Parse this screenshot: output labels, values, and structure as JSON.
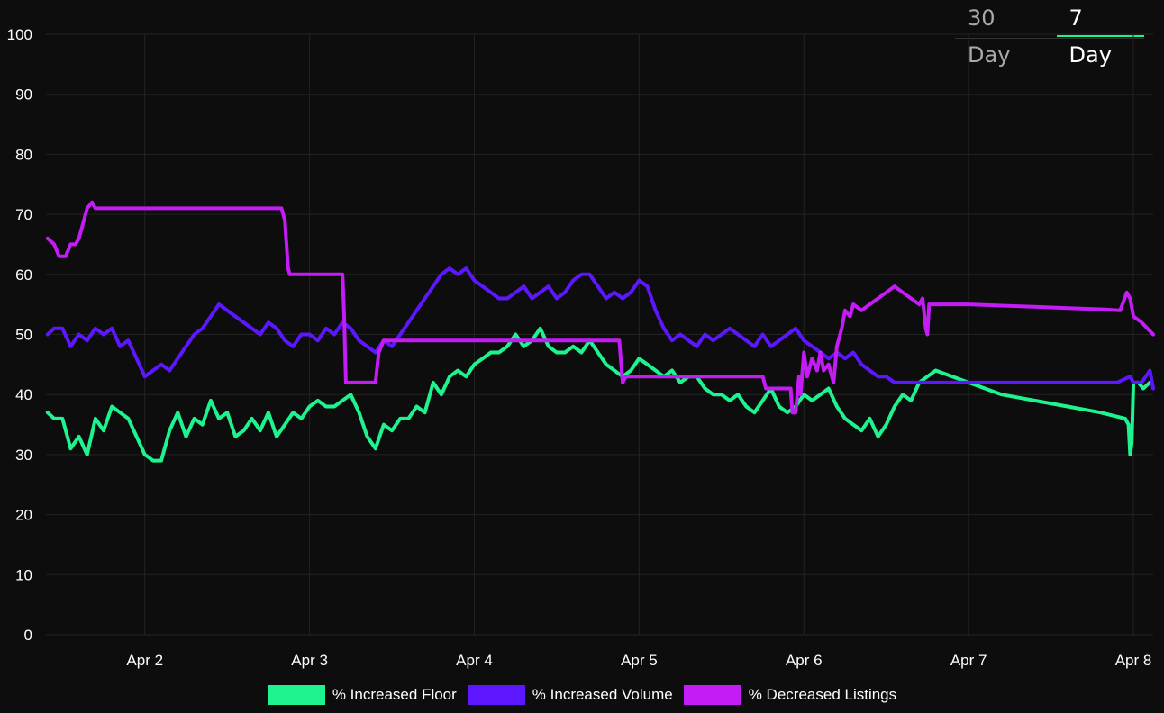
{
  "tabs": [
    {
      "label": "30 Day",
      "active": false
    },
    {
      "label": "7 Day",
      "active": true
    }
  ],
  "chart_data": {
    "type": "line",
    "title": "",
    "xlabel": "",
    "ylabel": "",
    "ylim": [
      0,
      100
    ],
    "yticks": [
      0,
      10,
      20,
      30,
      40,
      50,
      60,
      70,
      80,
      90,
      100
    ],
    "xlim": [
      1.4,
      8.12
    ],
    "xticks": [
      {
        "x": 2,
        "label": "Apr 2"
      },
      {
        "x": 3,
        "label": "Apr 3"
      },
      {
        "x": 4,
        "label": "Apr 4"
      },
      {
        "x": 5,
        "label": "Apr 5"
      },
      {
        "x": 6,
        "label": "Apr 6"
      },
      {
        "x": 7,
        "label": "Apr 7"
      },
      {
        "x": 8,
        "label": "Apr 8"
      }
    ],
    "grid": true,
    "legend": "bottom",
    "series": [
      {
        "name": "% Increased Floor",
        "color": "#1ef38f",
        "points": [
          [
            1.41,
            37
          ],
          [
            1.45,
            36
          ],
          [
            1.5,
            36
          ],
          [
            1.55,
            31
          ],
          [
            1.6,
            33
          ],
          [
            1.65,
            30
          ],
          [
            1.7,
            36
          ],
          [
            1.75,
            34
          ],
          [
            1.8,
            38
          ],
          [
            1.85,
            37
          ],
          [
            1.9,
            36
          ],
          [
            1.95,
            33
          ],
          [
            2.0,
            30
          ],
          [
            2.05,
            29
          ],
          [
            2.1,
            29
          ],
          [
            2.15,
            34
          ],
          [
            2.2,
            37
          ],
          [
            2.25,
            33
          ],
          [
            2.3,
            36
          ],
          [
            2.35,
            35
          ],
          [
            2.4,
            39
          ],
          [
            2.45,
            36
          ],
          [
            2.5,
            37
          ],
          [
            2.55,
            33
          ],
          [
            2.6,
            34
          ],
          [
            2.65,
            36
          ],
          [
            2.7,
            34
          ],
          [
            2.75,
            37
          ],
          [
            2.8,
            33
          ],
          [
            2.85,
            35
          ],
          [
            2.9,
            37
          ],
          [
            2.95,
            36
          ],
          [
            3.0,
            38
          ],
          [
            3.05,
            39
          ],
          [
            3.1,
            38
          ],
          [
            3.15,
            38
          ],
          [
            3.2,
            39
          ],
          [
            3.25,
            40
          ],
          [
            3.3,
            37
          ],
          [
            3.35,
            33
          ],
          [
            3.4,
            31
          ],
          [
            3.45,
            35
          ],
          [
            3.5,
            34
          ],
          [
            3.55,
            36
          ],
          [
            3.6,
            36
          ],
          [
            3.65,
            38
          ],
          [
            3.7,
            37
          ],
          [
            3.75,
            42
          ],
          [
            3.8,
            40
          ],
          [
            3.85,
            43
          ],
          [
            3.9,
            44
          ],
          [
            3.95,
            43
          ],
          [
            4.0,
            45
          ],
          [
            4.05,
            46
          ],
          [
            4.1,
            47
          ],
          [
            4.15,
            47
          ],
          [
            4.2,
            48
          ],
          [
            4.25,
            50
          ],
          [
            4.3,
            48
          ],
          [
            4.35,
            49
          ],
          [
            4.4,
            51
          ],
          [
            4.45,
            48
          ],
          [
            4.5,
            47
          ],
          [
            4.55,
            47
          ],
          [
            4.6,
            48
          ],
          [
            4.65,
            47
          ],
          [
            4.7,
            49
          ],
          [
            4.75,
            47
          ],
          [
            4.8,
            45
          ],
          [
            4.85,
            44
          ],
          [
            4.9,
            43
          ],
          [
            4.95,
            44
          ],
          [
            5.0,
            46
          ],
          [
            5.05,
            45
          ],
          [
            5.1,
            44
          ],
          [
            5.15,
            43
          ],
          [
            5.2,
            44
          ],
          [
            5.25,
            42
          ],
          [
            5.3,
            43
          ],
          [
            5.35,
            43
          ],
          [
            5.4,
            41
          ],
          [
            5.45,
            40
          ],
          [
            5.5,
            40
          ],
          [
            5.55,
            39
          ],
          [
            5.6,
            40
          ],
          [
            5.65,
            38
          ],
          [
            5.7,
            37
          ],
          [
            5.75,
            39
          ],
          [
            5.8,
            41
          ],
          [
            5.85,
            38
          ],
          [
            5.9,
            37
          ],
          [
            5.95,
            38
          ],
          [
            6.0,
            40
          ],
          [
            6.05,
            39
          ],
          [
            6.1,
            40
          ],
          [
            6.15,
            41
          ],
          [
            6.2,
            38
          ],
          [
            6.25,
            36
          ],
          [
            6.3,
            35
          ],
          [
            6.35,
            34
          ],
          [
            6.4,
            36
          ],
          [
            6.45,
            33
          ],
          [
            6.5,
            35
          ],
          [
            6.55,
            38
          ],
          [
            6.6,
            40
          ],
          [
            6.65,
            39
          ],
          [
            6.7,
            42
          ],
          [
            6.75,
            43
          ],
          [
            6.8,
            44
          ],
          [
            7.0,
            42
          ],
          [
            7.2,
            40
          ],
          [
            7.4,
            39
          ],
          [
            7.6,
            38
          ],
          [
            7.8,
            37
          ],
          [
            7.95,
            36
          ],
          [
            7.97,
            35
          ],
          [
            7.98,
            30
          ],
          [
            7.99,
            32
          ],
          [
            8.0,
            42
          ],
          [
            8.03,
            42
          ],
          [
            8.06,
            41
          ],
          [
            8.1,
            42
          ]
        ]
      },
      {
        "name": "% Increased Volume",
        "color": "#5d17ff",
        "points": [
          [
            1.41,
            50
          ],
          [
            1.45,
            51
          ],
          [
            1.5,
            51
          ],
          [
            1.55,
            48
          ],
          [
            1.6,
            50
          ],
          [
            1.65,
            49
          ],
          [
            1.7,
            51
          ],
          [
            1.75,
            50
          ],
          [
            1.8,
            51
          ],
          [
            1.85,
            48
          ],
          [
            1.9,
            49
          ],
          [
            1.95,
            46
          ],
          [
            2.0,
            43
          ],
          [
            2.05,
            44
          ],
          [
            2.1,
            45
          ],
          [
            2.15,
            44
          ],
          [
            2.2,
            46
          ],
          [
            2.25,
            48
          ],
          [
            2.3,
            50
          ],
          [
            2.35,
            51
          ],
          [
            2.4,
            53
          ],
          [
            2.45,
            55
          ],
          [
            2.5,
            54
          ],
          [
            2.55,
            53
          ],
          [
            2.6,
            52
          ],
          [
            2.65,
            51
          ],
          [
            2.7,
            50
          ],
          [
            2.75,
            52
          ],
          [
            2.8,
            51
          ],
          [
            2.85,
            49
          ],
          [
            2.9,
            48
          ],
          [
            2.95,
            50
          ],
          [
            3.0,
            50
          ],
          [
            3.05,
            49
          ],
          [
            3.1,
            51
          ],
          [
            3.15,
            50
          ],
          [
            3.2,
            52
          ],
          [
            3.25,
            51
          ],
          [
            3.3,
            49
          ],
          [
            3.35,
            48
          ],
          [
            3.4,
            47
          ],
          [
            3.45,
            49
          ],
          [
            3.5,
            48
          ],
          [
            3.55,
            50
          ],
          [
            3.6,
            52
          ],
          [
            3.65,
            54
          ],
          [
            3.7,
            56
          ],
          [
            3.75,
            58
          ],
          [
            3.8,
            60
          ],
          [
            3.85,
            61
          ],
          [
            3.9,
            60
          ],
          [
            3.95,
            61
          ],
          [
            4.0,
            59
          ],
          [
            4.05,
            58
          ],
          [
            4.1,
            57
          ],
          [
            4.15,
            56
          ],
          [
            4.2,
            56
          ],
          [
            4.25,
            57
          ],
          [
            4.3,
            58
          ],
          [
            4.35,
            56
          ],
          [
            4.4,
            57
          ],
          [
            4.45,
            58
          ],
          [
            4.5,
            56
          ],
          [
            4.55,
            57
          ],
          [
            4.6,
            59
          ],
          [
            4.65,
            60
          ],
          [
            4.7,
            60
          ],
          [
            4.75,
            58
          ],
          [
            4.8,
            56
          ],
          [
            4.85,
            57
          ],
          [
            4.9,
            56
          ],
          [
            4.95,
            57
          ],
          [
            5.0,
            59
          ],
          [
            5.05,
            58
          ],
          [
            5.1,
            54
          ],
          [
            5.15,
            51
          ],
          [
            5.2,
            49
          ],
          [
            5.25,
            50
          ],
          [
            5.3,
            49
          ],
          [
            5.35,
            48
          ],
          [
            5.4,
            50
          ],
          [
            5.45,
            49
          ],
          [
            5.5,
            50
          ],
          [
            5.55,
            51
          ],
          [
            5.6,
            50
          ],
          [
            5.65,
            49
          ],
          [
            5.7,
            48
          ],
          [
            5.75,
            50
          ],
          [
            5.8,
            48
          ],
          [
            5.85,
            49
          ],
          [
            5.9,
            50
          ],
          [
            5.95,
            51
          ],
          [
            6.0,
            49
          ],
          [
            6.05,
            48
          ],
          [
            6.1,
            47
          ],
          [
            6.15,
            46
          ],
          [
            6.2,
            47
          ],
          [
            6.25,
            46
          ],
          [
            6.3,
            47
          ],
          [
            6.35,
            45
          ],
          [
            6.4,
            44
          ],
          [
            6.45,
            43
          ],
          [
            6.5,
            43
          ],
          [
            6.55,
            42
          ],
          [
            6.7,
            42
          ],
          [
            6.9,
            42
          ],
          [
            7.1,
            42
          ],
          [
            7.3,
            42
          ],
          [
            7.5,
            42
          ],
          [
            7.7,
            42
          ],
          [
            7.9,
            42
          ],
          [
            7.98,
            43
          ],
          [
            8.0,
            42
          ],
          [
            8.05,
            42
          ],
          [
            8.1,
            44
          ],
          [
            8.12,
            41
          ]
        ]
      },
      {
        "name": "% Decreased Listings",
        "color": "#c41cf5",
        "points": [
          [
            1.41,
            66
          ],
          [
            1.45,
            65
          ],
          [
            1.48,
            63
          ],
          [
            1.52,
            63
          ],
          [
            1.55,
            65
          ],
          [
            1.58,
            65
          ],
          [
            1.6,
            66
          ],
          [
            1.63,
            69
          ],
          [
            1.65,
            71
          ],
          [
            1.68,
            72
          ],
          [
            1.7,
            71
          ],
          [
            1.8,
            71
          ],
          [
            2.2,
            71
          ],
          [
            2.6,
            71
          ],
          [
            2.83,
            71
          ],
          [
            2.85,
            69
          ],
          [
            2.87,
            61
          ],
          [
            2.88,
            60
          ],
          [
            3.0,
            60
          ],
          [
            3.2,
            60
          ],
          [
            3.21,
            53
          ],
          [
            3.22,
            42
          ],
          [
            3.4,
            42
          ],
          [
            3.42,
            47
          ],
          [
            3.45,
            49
          ],
          [
            3.6,
            49
          ],
          [
            4.0,
            49
          ],
          [
            4.5,
            49
          ],
          [
            4.88,
            49
          ],
          [
            4.9,
            42
          ],
          [
            4.92,
            43
          ],
          [
            5.0,
            43
          ],
          [
            5.5,
            43
          ],
          [
            5.75,
            43
          ],
          [
            5.77,
            41
          ],
          [
            5.92,
            41
          ],
          [
            5.93,
            37
          ],
          [
            5.95,
            37
          ],
          [
            5.97,
            43
          ],
          [
            5.98,
            40
          ],
          [
            6.0,
            47
          ],
          [
            6.02,
            43
          ],
          [
            6.05,
            46
          ],
          [
            6.08,
            44
          ],
          [
            6.1,
            47
          ],
          [
            6.12,
            44
          ],
          [
            6.15,
            45
          ],
          [
            6.18,
            42
          ],
          [
            6.2,
            48
          ],
          [
            6.23,
            51
          ],
          [
            6.25,
            54
          ],
          [
            6.28,
            53
          ],
          [
            6.3,
            55
          ],
          [
            6.35,
            54
          ],
          [
            6.4,
            55
          ],
          [
            6.45,
            56
          ],
          [
            6.5,
            57
          ],
          [
            6.55,
            58
          ],
          [
            6.6,
            57
          ],
          [
            6.65,
            56
          ],
          [
            6.7,
            55
          ],
          [
            6.72,
            56
          ],
          [
            6.74,
            51
          ],
          [
            6.75,
            50
          ],
          [
            6.76,
            55
          ],
          [
            6.8,
            55
          ],
          [
            7.0,
            55
          ],
          [
            7.2,
            54.8
          ],
          [
            7.4,
            54.6
          ],
          [
            7.6,
            54.4
          ],
          [
            7.8,
            54.2
          ],
          [
            7.92,
            54
          ],
          [
            7.96,
            57
          ],
          [
            7.98,
            56
          ],
          [
            8.0,
            53
          ],
          [
            8.05,
            52
          ],
          [
            8.12,
            50
          ]
        ]
      }
    ]
  }
}
